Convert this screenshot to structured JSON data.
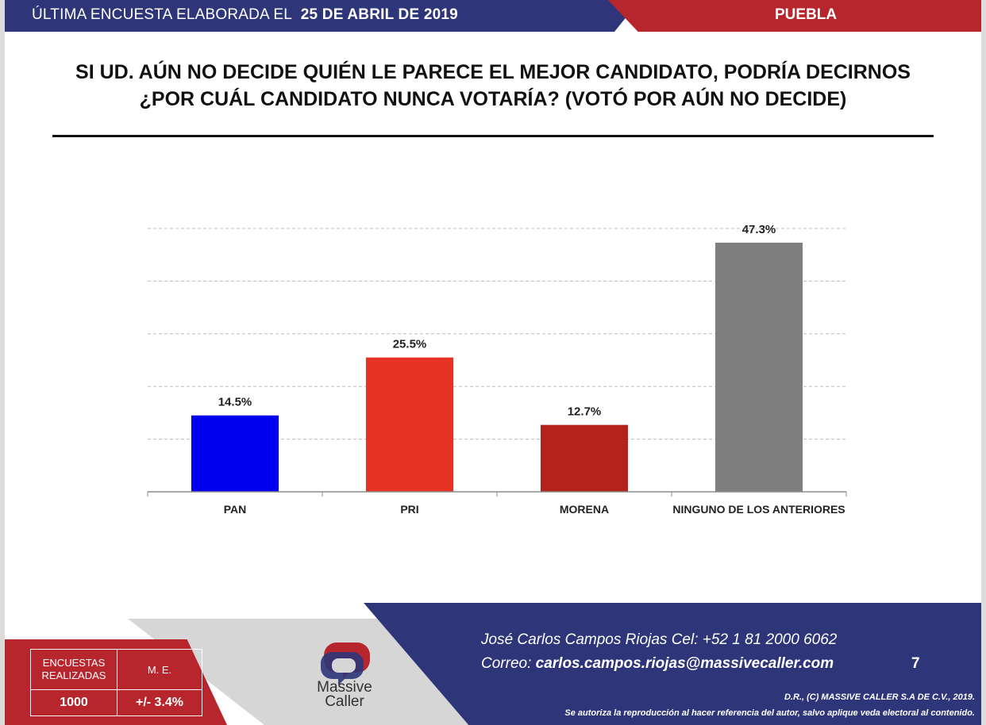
{
  "header": {
    "prefix": "ÚLTIMA ENCUESTA ELABORADA EL",
    "date": "25 DE ABRIL DE 2019",
    "state": "PUEBLA"
  },
  "title": {
    "line1": "SI UD. AÚN NO DECIDE QUIÉN LE PARECE EL MEJOR CANDIDATO, PODRÍA DECIRNOS",
    "line2": "¿POR CUÁL CANDIDATO NUNCA VOTARÍA? (VOTÓ POR AÚN NO DECIDE)"
  },
  "chart_data": {
    "type": "bar",
    "categories": [
      "PAN",
      "PRI",
      "MORENA",
      "NINGUNO DE LOS ANTERIORES"
    ],
    "values": [
      14.5,
      25.5,
      12.7,
      47.3
    ],
    "value_labels": [
      "14.5%",
      "25.5%",
      "12.7%",
      "47.3%"
    ],
    "colors": [
      "#0000ee",
      "#e63222",
      "#b3221b",
      "#7f7f7f"
    ],
    "ylim": [
      0,
      50
    ],
    "gridlines": [
      10,
      20,
      30,
      40,
      50
    ],
    "grid": true,
    "legend": false
  },
  "footer": {
    "stats_header_1a": "ENCUESTAS",
    "stats_header_1b": "REALIZADAS",
    "stats_header_2": "M. E.",
    "stats_value_1": "1000",
    "stats_value_2": "+/- 3.4%",
    "logo_word_1": "Massive",
    "logo_word_2": "Caller",
    "contact_line": "José Carlos Campos Riojas Cel: +52 1 81 2000 6062",
    "email_label": "Correo:",
    "email": "carlos.campos.riojas@massivecaller.com",
    "page_number": "7",
    "legal_1": "D.R., (C) MASSIVE CALLER S.A DE C.V., 2019.",
    "legal_2": "Se autoriza la reproducción al hacer referencia del autor, salvo aplique veda electoral al contenido."
  }
}
